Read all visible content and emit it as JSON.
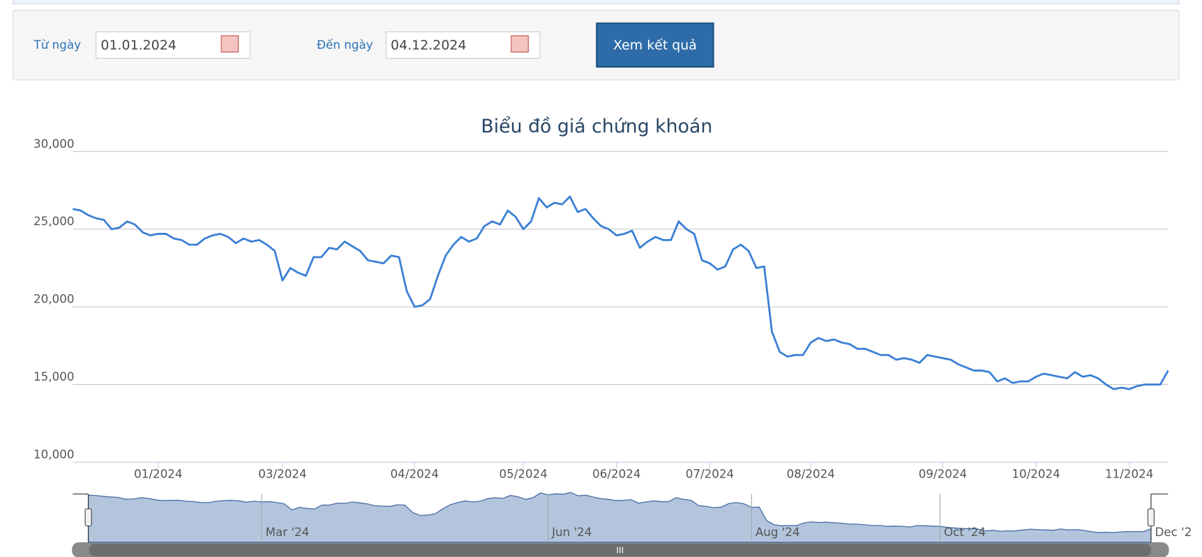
{
  "form": {
    "from_label": "Từ ngày",
    "from_value": "01.01.2024",
    "to_label": "Đến ngày",
    "to_value": "04.12.2024",
    "button": "Xem kết quả"
  },
  "chart_data": {
    "type": "line",
    "title": "Biểu đồ giá chứng khoán",
    "color": "#3a7fd5",
    "grid": true,
    "values": [
      26300,
      26200,
      25900,
      25700,
      25600,
      25000,
      25100,
      25500,
      25300,
      24800,
      24600,
      24700,
      24700,
      24400,
      24300,
      24000,
      24000,
      24400,
      24600,
      24700,
      24500,
      24100,
      24400,
      24200,
      24300,
      24000,
      23600,
      21700,
      22500,
      22200,
      22000,
      23200,
      23200,
      23800,
      23700,
      24200,
      23900,
      23600,
      23000,
      22900,
      22800,
      23300,
      23200,
      21000,
      20000,
      20100,
      20500,
      22000,
      23300,
      24000,
      24500,
      24200,
      24400,
      25200,
      25500,
      25300,
      26200,
      25800,
      25000,
      25500,
      27000,
      26400,
      26700,
      26600,
      27100,
      26100,
      26300,
      25700,
      25200,
      25000,
      24600,
      24700,
      24900,
      23800,
      24200,
      24500,
      24300,
      24300,
      25500,
      25000,
      24700,
      23000,
      22800,
      22400,
      22600,
      23700,
      24000,
      23600,
      22500,
      22600,
      18400,
      17100,
      16800,
      16900,
      16900,
      17700,
      18000,
      17800,
      17900,
      17700,
      17600,
      17300,
      17300,
      17100,
      16900,
      16900,
      16600,
      16700,
      16600,
      16400,
      16900,
      16800,
      16700,
      16600,
      16300,
      16100,
      15900,
      15900,
      15800,
      15200,
      15400,
      15100,
      15200,
      15200,
      15500,
      15700,
      15600,
      15500,
      15400,
      15800,
      15500,
      15600,
      15400,
      15000,
      14700,
      14800,
      14700,
      14900,
      15000,
      15000,
      15000,
      15900
    ],
    "xlim": [
      0,
      141
    ],
    "xticks": [
      {
        "value": 11,
        "label": "01/2024"
      },
      {
        "value": 27,
        "label": "03/2024"
      },
      {
        "value": 44,
        "label": "04/2024"
      },
      {
        "value": 58,
        "label": "05/2024"
      },
      {
        "value": 70,
        "label": "06/2024"
      },
      {
        "value": 82,
        "label": "07/2024"
      },
      {
        "value": 95,
        "label": "08/2024"
      },
      {
        "value": 112,
        "label": "09/2024"
      },
      {
        "value": 124,
        "label": "10/2024"
      },
      {
        "value": 136,
        "label": "11/2024"
      }
    ],
    "ylim": [
      10000,
      30000
    ],
    "yticks": [
      {
        "value": 10000,
        "label": "10,000"
      },
      {
        "value": 15000,
        "label": "15,000"
      },
      {
        "value": 20000,
        "label": "20,000"
      },
      {
        "value": 25000,
        "label": "25,000"
      },
      {
        "value": 30000,
        "label": "30,000"
      }
    ],
    "navigator_ticks": [
      {
        "value": 23,
        "label": "Mar '24"
      },
      {
        "value": 61,
        "label": "Jun '24"
      },
      {
        "value": 88,
        "label": "Aug '24"
      },
      {
        "value": 113,
        "label": "Oct '24"
      },
      {
        "value": 141,
        "label": "Dec '2"
      }
    ]
  }
}
